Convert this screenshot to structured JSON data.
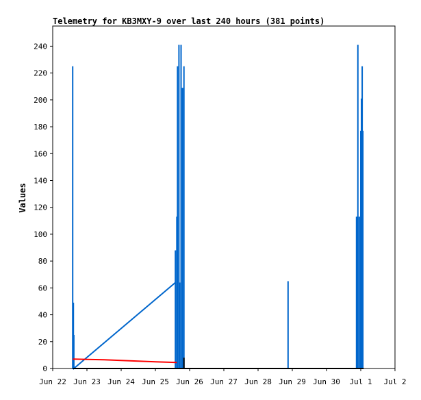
{
  "chart_data": {
    "type": "line",
    "title": "Telemetry for KB3MXY-9 over last 240 hours (381 points)",
    "xlabel": "",
    "ylabel": "Values",
    "x_axis": {
      "start": "Jun 22",
      "end": "Jul 2",
      "ticks": [
        "Jun 22",
        "Jun 23",
        "Jun 24",
        "Jun 25",
        "Jun 26",
        "Jun 27",
        "Jun 28",
        "Jun 29",
        "Jun 30",
        "Jul 1",
        "Jul 2"
      ]
    },
    "ylim": [
      0,
      255
    ],
    "y_ticks": [
      0,
      20,
      40,
      60,
      80,
      100,
      120,
      140,
      160,
      180,
      200,
      220,
      240
    ],
    "grid": false,
    "series": [
      {
        "color": "#0066cc",
        "points": [
          [
            "Jun 22 14:00",
            0
          ],
          [
            "Jun 22 14:00",
            225
          ],
          [
            "Jun 22 14:00",
            0
          ],
          [
            "Jun 22 14:30",
            0
          ],
          [
            "Jun 22 14:30",
            49
          ],
          [
            "Jun 22 14:30",
            0
          ],
          [
            "Jun 22 14:50",
            0
          ],
          [
            "Jun 22 14:50",
            25
          ],
          [
            "Jun 22 14:50",
            0
          ],
          [
            "Jun 25 14:00",
            64
          ],
          [
            "Jun 25 14:00",
            0
          ],
          [
            "Jun 25 14:00",
            88
          ],
          [
            "Jun 25 14:00",
            0
          ],
          [
            "Jun 25 15:00",
            0
          ],
          [
            "Jun 25 15:00",
            113
          ],
          [
            "Jun 25 15:00",
            0
          ],
          [
            "Jun 25 15:30",
            0
          ],
          [
            "Jun 25 15:30",
            225
          ],
          [
            "Jun 25 15:30",
            0
          ],
          [
            "Jun 25 16:30",
            0
          ],
          [
            "Jun 25 16:30",
            241
          ],
          [
            "Jun 25 16:30",
            0
          ],
          [
            "Jun 25 17:00",
            0
          ],
          [
            "Jun 25 17:00",
            64
          ],
          [
            "Jun 25 17:00",
            0
          ],
          [
            "Jun 25 18:00",
            0
          ],
          [
            "Jun 25 18:00",
            241
          ],
          [
            "Jun 25 18:00",
            0
          ],
          [
            "Jun 25 19:00",
            0
          ],
          [
            "Jun 25 19:00",
            209
          ],
          [
            "Jun 25 19:00",
            0
          ],
          [
            "Jun 25 20:00",
            0
          ],
          [
            "Jun 25 20:00",
            225
          ],
          [
            "Jun 25 20:00",
            0
          ],
          [
            "Jun 28 21:00",
            0
          ],
          [
            "Jun 28 21:00",
            65
          ],
          [
            "Jun 28 21:00",
            0
          ],
          [
            "Jun 30 21:00",
            0
          ],
          [
            "Jun 30 21:00",
            113
          ],
          [
            "Jun 30 21:00",
            0
          ],
          [
            "Jun 30 22:00",
            0
          ],
          [
            "Jun 30 22:00",
            241
          ],
          [
            "Jun 30 22:00",
            0
          ],
          [
            "Jun 30 23:00",
            0
          ],
          [
            "Jun 30 23:00",
            113
          ],
          [
            "Jun 30 23:00",
            0
          ],
          [
            "Jul 1 00:00",
            0
          ],
          [
            "Jul 1 00:00",
            177
          ],
          [
            "Jul 1 00:00",
            0
          ],
          [
            "Jul 1 00:30",
            0
          ],
          [
            "Jul 1 00:30",
            201
          ],
          [
            "Jul 1 00:30",
            0
          ],
          [
            "Jul 1 01:00",
            0
          ],
          [
            "Jul 1 01:00",
            225
          ],
          [
            "Jul 1 01:00",
            0
          ],
          [
            "Jul 1 01:30",
            0
          ],
          [
            "Jul 1 01:30",
            177
          ],
          [
            "Jul 1 01:30",
            0
          ]
        ]
      },
      {
        "color": "#ff0000",
        "points": [
          [
            "Jun 22 14:00",
            7
          ],
          [
            "Jun 23 12:00",
            6.5
          ],
          [
            "Jun 24 00:00",
            6
          ],
          [
            "Jun 24 12:00",
            5.5
          ],
          [
            "Jun 25 00:00",
            5
          ],
          [
            "Jun 25 15:00",
            4.5
          ]
        ]
      },
      {
        "color": "#000000",
        "points": [
          [
            "Jun 22 14:00",
            0
          ],
          [
            "Jun 25 20:00",
            0
          ],
          [
            "Jun 25 20:00",
            8
          ],
          [
            "Jun 25 20:00",
            0
          ],
          [
            "Jul 1 02:00",
            0
          ]
        ]
      }
    ]
  }
}
